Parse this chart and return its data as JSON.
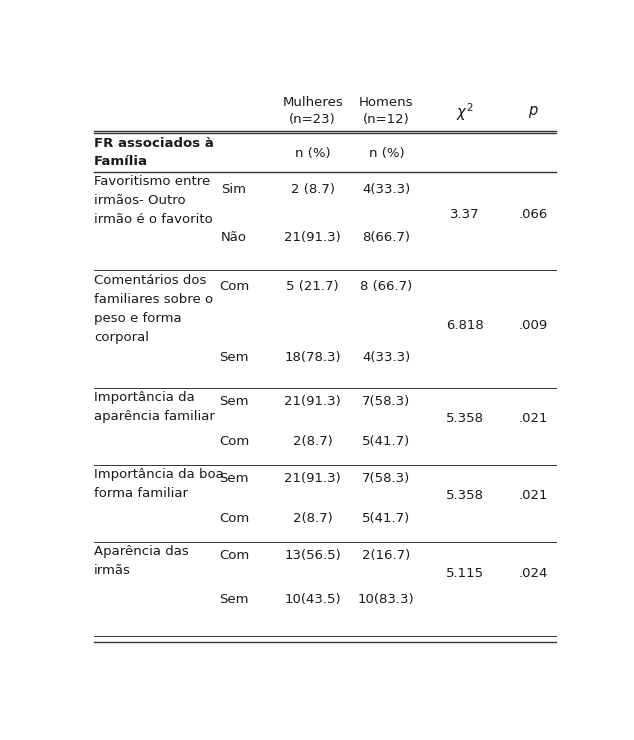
{
  "col_x": {
    "label": 0.03,
    "cond": 0.315,
    "mulheres": 0.475,
    "homens": 0.625,
    "chi2": 0.785,
    "p": 0.925
  },
  "font_size": 9.5,
  "font_color": "#1a1a1a",
  "background_color": "#ffffff",
  "line_color": "#333333",
  "header": {
    "mulheres": "Mulheres\n(n=23)",
    "homens": "Homens\n(n=12)",
    "chi2": "χ²",
    "p": "p"
  },
  "subheader": {
    "label": "FR associados à\nFamília",
    "mulheres": "n (%)",
    "homens": "n (%)"
  },
  "rows": [
    {
      "label_lines": [
        "Favoritismo entre",
        "irmãos- Outro",
        "irmão é o favorito"
      ],
      "sub_rows": [
        {
          "cond": "Sim",
          "mulheres": "2 (8.7)",
          "homens": "4(33.3)"
        },
        {
          "cond": "Não",
          "mulheres": "21(91.3)",
          "homens": "8(66.7)"
        }
      ],
      "chi2": "3.37",
      "p": ".066"
    },
    {
      "label_lines": [
        "Comentários dos",
        "familiares sobre o",
        "peso e forma",
        "corporal"
      ],
      "sub_rows": [
        {
          "cond": "Com",
          "mulheres": "5 (21.7)",
          "homens": "8 (66.7)"
        },
        {
          "cond": "Sem",
          "mulheres": "18(78.3)",
          "homens": "4(33.3)"
        }
      ],
      "chi2": "6.818",
      "p": ".009"
    },
    {
      "label_lines": [
        "Importância da",
        "aparência familiar"
      ],
      "sub_rows": [
        {
          "cond": "Sem",
          "mulheres": "21(91.3)",
          "homens": "7(58.3)"
        },
        {
          "cond": "Com",
          "mulheres": "2(8.7)",
          "homens": "5(41.7)"
        }
      ],
      "chi2": "5.358",
      "p": ".021"
    },
    {
      "label_lines": [
        "Importância da boa",
        "forma familiar"
      ],
      "sub_rows": [
        {
          "cond": "Sem",
          "mulheres": "21(91.3)",
          "homens": "7(58.3)"
        },
        {
          "cond": "Com",
          "mulheres": "2(8.7)",
          "homens": "5(41.7)"
        }
      ],
      "chi2": "5.358",
      "p": ".021"
    },
    {
      "label_lines": [
        "Aparência das",
        "irmãs"
      ],
      "sub_rows": [
        {
          "cond": "Com",
          "mulheres": "13(56.5)",
          "homens": "2(16.7)"
        },
        {
          "cond": "Sem",
          "mulheres": "10(43.5)",
          "homens": "10(83.3)"
        }
      ],
      "chi2": "5.115",
      "p": ".024"
    }
  ]
}
